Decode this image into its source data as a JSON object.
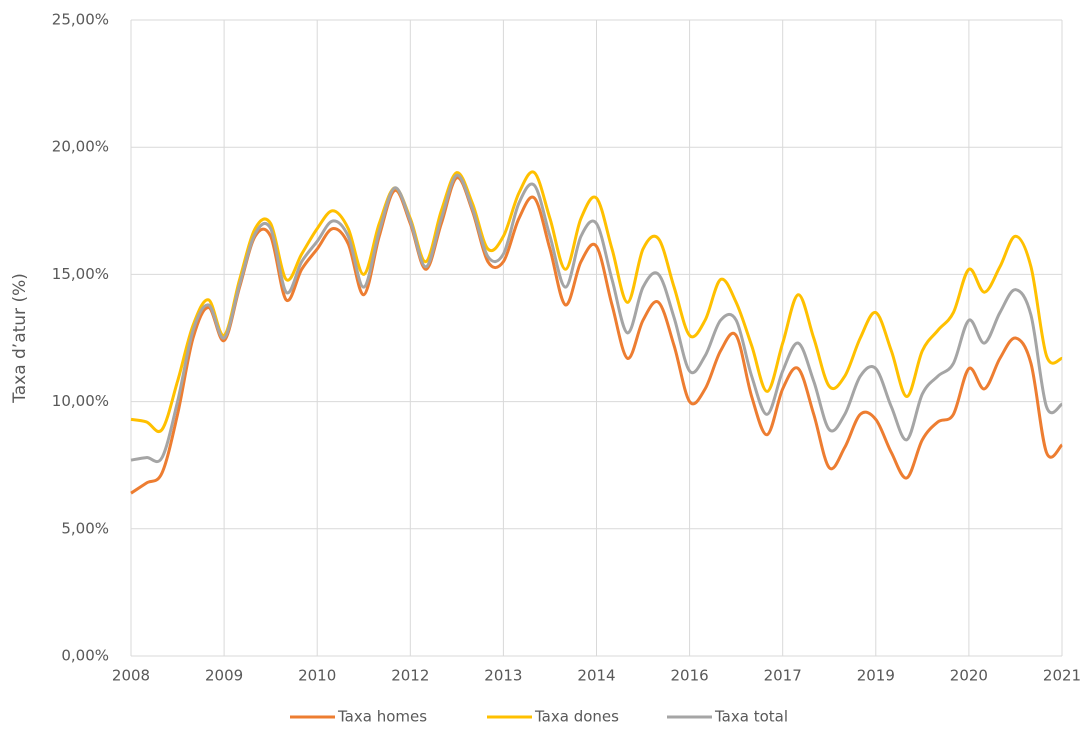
{
  "chart_data": {
    "type": "line",
    "y_label": "Taxa d’atur (%)",
    "categories": [
      "2008",
      null,
      null,
      null,
      null,
      null,
      "2009",
      null,
      null,
      null,
      null,
      null,
      "2010",
      null,
      null,
      null,
      null,
      null,
      "2012",
      null,
      null,
      null,
      null,
      null,
      "2013",
      null,
      null,
      null,
      null,
      null,
      "2014",
      null,
      null,
      null,
      null,
      null,
      "2016",
      null,
      null,
      null,
      null,
      null,
      "2017",
      null,
      null,
      null,
      null,
      null,
      "2019",
      null,
      null,
      null,
      null,
      null,
      "2020",
      null,
      null,
      null,
      null,
      null,
      "2021"
    ],
    "series": [
      {
        "name": "Taxa homes",
        "color": "#ed7d31",
        "values": [
          6.4,
          6.8,
          7.2,
          9.5,
          12.5,
          13.7,
          12.4,
          14.5,
          16.5,
          16.5,
          14.0,
          15.2,
          16.0,
          16.8,
          16.2,
          14.2,
          16.5,
          18.3,
          17.0,
          15.2,
          17.0,
          18.8,
          17.5,
          15.5,
          15.5,
          17.2,
          18.0,
          16.0,
          13.8,
          15.5,
          16.1,
          13.8,
          11.7,
          13.2,
          13.9,
          12.2,
          10.0,
          10.5,
          12.0,
          12.6,
          10.2,
          8.7,
          10.5,
          11.3,
          9.5,
          7.4,
          8.2,
          9.5,
          9.3,
          8.0,
          7.0,
          8.5,
          9.2,
          9.5,
          11.3,
          10.5,
          11.7,
          12.5,
          11.5,
          8.0,
          8.3
        ]
      },
      {
        "name": "Taxa dones",
        "color": "#ffc000",
        "values": [
          9.3,
          9.2,
          8.9,
          10.8,
          13.0,
          14.0,
          12.6,
          14.8,
          16.8,
          17.0,
          14.8,
          15.8,
          16.8,
          17.5,
          16.8,
          15.0,
          17.0,
          18.4,
          17.2,
          15.5,
          17.5,
          19.0,
          17.8,
          16.0,
          16.5,
          18.2,
          19.0,
          17.2,
          15.2,
          17.2,
          18.0,
          16.0,
          13.9,
          16.0,
          16.4,
          14.5,
          12.6,
          13.2,
          14.8,
          13.9,
          12.2,
          10.4,
          12.3,
          14.2,
          12.5,
          10.6,
          11.0,
          12.5,
          13.5,
          12.0,
          10.2,
          12.0,
          12.8,
          13.5,
          15.2,
          14.3,
          15.3,
          16.5,
          15.3,
          11.8,
          11.7
        ]
      },
      {
        "name": "Taxa total",
        "color": "#a5a5a5",
        "values": [
          7.7,
          7.8,
          7.8,
          10.0,
          12.8,
          13.8,
          12.5,
          14.6,
          16.6,
          16.8,
          14.3,
          15.5,
          16.3,
          17.1,
          16.5,
          14.5,
          16.7,
          18.4,
          17.1,
          15.3,
          17.2,
          18.9,
          17.6,
          15.7,
          15.8,
          17.8,
          18.5,
          16.5,
          14.5,
          16.5,
          17.0,
          14.8,
          12.7,
          14.5,
          15.0,
          13.3,
          11.2,
          11.8,
          13.2,
          13.2,
          11.0,
          9.5,
          11.2,
          12.3,
          10.8,
          8.9,
          9.5,
          11.0,
          11.3,
          9.8,
          8.5,
          10.3,
          11.0,
          11.5,
          13.2,
          12.3,
          13.5,
          14.4,
          13.4,
          9.8,
          9.9
        ]
      }
    ],
    "ylim": [
      0,
      25
    ],
    "yticks": [
      {
        "value": 0,
        "label": "0,00%"
      },
      {
        "value": 5,
        "label": "5,00%"
      },
      {
        "value": 10,
        "label": "10,00%"
      },
      {
        "value": 15,
        "label": "15,00%"
      },
      {
        "value": 20,
        "label": "20,00%"
      },
      {
        "value": 25,
        "label": "25,00%"
      }
    ],
    "grid": true,
    "legend": "bottom"
  }
}
